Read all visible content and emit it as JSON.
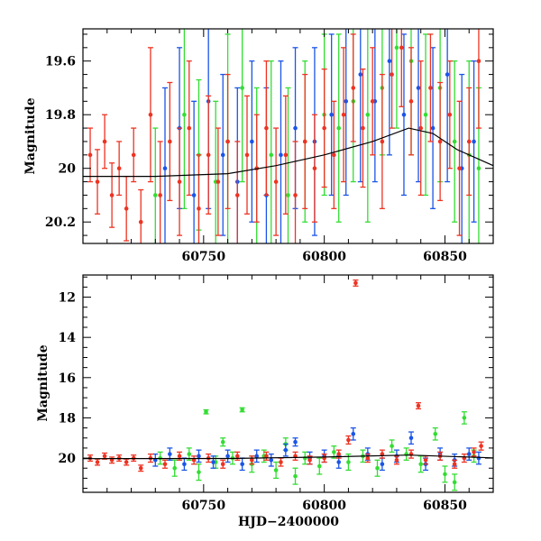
{
  "colors": {
    "green": "#33dd33",
    "blue": "#1a55e8",
    "red": "#ee3322",
    "model": "#000000"
  },
  "chart_data": [
    {
      "panel": "top",
      "type": "scatter",
      "title": "",
      "xlabel": "",
      "ylabel": "Magnitude",
      "xlim": [
        60700,
        60870
      ],
      "ylim": [
        20.28,
        19.48
      ],
      "y_inverted": true,
      "xticks": [
        "60750",
        "60800",
        "60850"
      ],
      "yticks": [
        "19.6",
        "19.8",
        "20",
        "20.2"
      ],
      "series": [
        {
          "color": "green",
          "points": [
            [
              60730,
              20.1,
              0.25
            ],
            [
              60742,
              19.8,
              0.35
            ],
            [
              60748,
              19.95,
              0.28
            ],
            [
              60755,
              20.05,
              0.3
            ],
            [
              60760,
              19.9,
              0.4
            ],
            [
              60766,
              19.7,
              0.35
            ],
            [
              60772,
              20.0,
              0.3
            ],
            [
              60778,
              19.95,
              0.35
            ],
            [
              60785,
              20.1,
              0.4
            ],
            [
              60792,
              19.9,
              0.3
            ],
            [
              60800,
              19.8,
              0.3
            ],
            [
              60806,
              19.85,
              0.35
            ],
            [
              60812,
              19.75,
              0.3
            ],
            [
              60818,
              19.8,
              0.4
            ],
            [
              60824,
              19.7,
              0.25
            ],
            [
              60830,
              19.55,
              0.3
            ],
            [
              60836,
              19.6,
              0.35
            ],
            [
              60842,
              19.8,
              0.3
            ],
            [
              60848,
              19.7,
              0.35
            ],
            [
              60854,
              19.9,
              0.3
            ],
            [
              60860,
              19.95,
              0.35
            ],
            [
              60864,
              20.0,
              0.3
            ]
          ]
        },
        {
          "color": "blue",
          "points": [
            [
              60734,
              20.0,
              0.3
            ],
            [
              60740,
              19.85,
              0.3
            ],
            [
              60746,
              20.1,
              0.35
            ],
            [
              60752,
              19.75,
              0.4
            ],
            [
              60758,
              19.95,
              0.3
            ],
            [
              60764,
              20.05,
              0.35
            ],
            [
              60770,
              19.9,
              0.3
            ],
            [
              60776,
              20.1,
              0.4
            ],
            [
              60782,
              19.95,
              0.35
            ],
            [
              60788,
              19.85,
              0.3
            ],
            [
              60796,
              19.9,
              0.35
            ],
            [
              60803,
              19.8,
              0.3
            ],
            [
              60809,
              19.75,
              0.35
            ],
            [
              60815,
              19.65,
              0.4
            ],
            [
              60821,
              19.75,
              0.3
            ],
            [
              60827,
              19.6,
              0.35
            ],
            [
              60833,
              19.8,
              0.3
            ],
            [
              60839,
              19.7,
              0.35
            ],
            [
              60845,
              19.85,
              0.3
            ],
            [
              60851,
              19.65,
              0.4
            ],
            [
              60857,
              20.0,
              0.35
            ],
            [
              60862,
              19.9,
              0.3
            ]
          ]
        },
        {
          "color": "red",
          "points": [
            [
              60703,
              19.95,
              0.1
            ],
            [
              60706,
              20.05,
              0.12
            ],
            [
              60709,
              19.9,
              0.1
            ],
            [
              60712,
              20.1,
              0.12
            ],
            [
              60715,
              20.0,
              0.1
            ],
            [
              60718,
              20.15,
              0.12
            ],
            [
              60721,
              19.95,
              0.1
            ],
            [
              60724,
              20.2,
              0.12
            ],
            [
              60728,
              19.8,
              0.25
            ],
            [
              60732,
              20.1,
              0.2
            ],
            [
              60736,
              19.9,
              0.22
            ],
            [
              60740,
              20.05,
              0.2
            ],
            [
              60744,
              19.85,
              0.25
            ],
            [
              60748,
              20.15,
              0.2
            ],
            [
              60752,
              19.95,
              0.22
            ],
            [
              60756,
              20.05,
              0.2
            ],
            [
              60760,
              19.9,
              0.25
            ],
            [
              60764,
              20.1,
              0.2
            ],
            [
              60768,
              19.95,
              0.22
            ],
            [
              60772,
              20.0,
              0.2
            ],
            [
              60776,
              19.85,
              0.25
            ],
            [
              60780,
              20.05,
              0.2
            ],
            [
              60784,
              19.95,
              0.22
            ],
            [
              60788,
              20.1,
              0.2
            ],
            [
              60792,
              19.9,
              0.25
            ],
            [
              60796,
              20.0,
              0.2
            ],
            [
              60800,
              19.85,
              0.22
            ],
            [
              60804,
              19.95,
              0.2
            ],
            [
              60808,
              19.8,
              0.25
            ],
            [
              60812,
              19.7,
              0.2
            ],
            [
              60816,
              19.85,
              0.22
            ],
            [
              60820,
              19.75,
              0.2
            ],
            [
              60824,
              19.9,
              0.25
            ],
            [
              60828,
              19.65,
              0.2
            ],
            [
              60832,
              19.55,
              0.22
            ],
            [
              60836,
              19.75,
              0.2
            ],
            [
              60840,
              19.85,
              0.25
            ],
            [
              60844,
              19.7,
              0.2
            ],
            [
              60848,
              19.9,
              0.22
            ],
            [
              60852,
              19.8,
              0.2
            ],
            [
              60856,
              20.0,
              0.25
            ],
            [
              60860,
              19.9,
              0.2
            ],
            [
              60864,
              19.6,
              0.25
            ]
          ]
        }
      ],
      "model_curve": [
        [
          60700,
          20.03
        ],
        [
          60730,
          20.03
        ],
        [
          60760,
          20.02
        ],
        [
          60780,
          19.99
        ],
        [
          60800,
          19.95
        ],
        [
          60820,
          19.9
        ],
        [
          60835,
          19.85
        ],
        [
          60845,
          19.87
        ],
        [
          60855,
          19.93
        ],
        [
          60870,
          19.99
        ]
      ]
    },
    {
      "panel": "bottom",
      "type": "scatter",
      "title": "",
      "xlabel": "HJD−2400000",
      "ylabel": "Magnitude",
      "xlim": [
        60700,
        60870
      ],
      "ylim": [
        21.7,
        10.9
      ],
      "y_inverted": true,
      "xticks": [
        "60750",
        "60800",
        "60850"
      ],
      "yticks": [
        "12",
        "14",
        "16",
        "18",
        "20"
      ],
      "series": [
        {
          "color": "green",
          "points": [
            [
              60732,
              20.0,
              0.3
            ],
            [
              60738,
              20.5,
              0.4
            ],
            [
              60744,
              19.8,
              0.3
            ],
            [
              60748,
              20.7,
              0.4
            ],
            [
              60751,
              17.7,
              0.1
            ],
            [
              60755,
              20.2,
              0.3
            ],
            [
              60758,
              19.2,
              0.2
            ],
            [
              60762,
              20.0,
              0.3
            ],
            [
              60766,
              17.6,
              0.1
            ],
            [
              60770,
              20.3,
              0.4
            ],
            [
              60775,
              19.9,
              0.3
            ],
            [
              60780,
              20.6,
              0.4
            ],
            [
              60784,
              19.3,
              0.3
            ],
            [
              60788,
              20.9,
              0.4
            ],
            [
              60792,
              20.0,
              0.3
            ],
            [
              60798,
              20.4,
              0.4
            ],
            [
              60804,
              19.7,
              0.3
            ],
            [
              60810,
              20.2,
              0.4
            ],
            [
              60816,
              19.9,
              0.3
            ],
            [
              60822,
              20.5,
              0.4
            ],
            [
              60828,
              19.4,
              0.3
            ],
            [
              60834,
              19.8,
              0.3
            ],
            [
              60840,
              20.3,
              0.4
            ],
            [
              60846,
              18.8,
              0.3
            ],
            [
              60850,
              20.8,
              0.4
            ],
            [
              60854,
              21.2,
              0.4
            ],
            [
              60858,
              18.0,
              0.3
            ],
            [
              60862,
              19.9,
              0.3
            ]
          ]
        },
        {
          "color": "blue",
          "points": [
            [
              60730,
              20.1,
              0.3
            ],
            [
              60736,
              19.8,
              0.3
            ],
            [
              60742,
              20.3,
              0.3
            ],
            [
              60748,
              19.9,
              0.3
            ],
            [
              60754,
              20.2,
              0.3
            ],
            [
              60760,
              19.9,
              0.3
            ],
            [
              60766,
              20.3,
              0.3
            ],
            [
              60772,
              19.9,
              0.3
            ],
            [
              60778,
              20.1,
              0.3
            ],
            [
              60784,
              19.6,
              0.3
            ],
            [
              60788,
              19.2,
              0.2
            ],
            [
              60794,
              20.0,
              0.3
            ],
            [
              60800,
              19.9,
              0.3
            ],
            [
              60806,
              20.2,
              0.3
            ],
            [
              60812,
              18.8,
              0.3
            ],
            [
              60818,
              19.8,
              0.3
            ],
            [
              60824,
              20.3,
              0.3
            ],
            [
              60830,
              19.9,
              0.3
            ],
            [
              60836,
              19.0,
              0.3
            ],
            [
              60842,
              20.3,
              0.3
            ],
            [
              60848,
              19.8,
              0.3
            ],
            [
              60854,
              20.1,
              0.3
            ],
            [
              60860,
              19.8,
              0.3
            ],
            [
              60864,
              20.0,
              0.3
            ]
          ]
        },
        {
          "color": "red",
          "points": [
            [
              60703,
              20.0,
              0.15
            ],
            [
              60706,
              20.2,
              0.15
            ],
            [
              60709,
              19.9,
              0.15
            ],
            [
              60712,
              20.1,
              0.15
            ],
            [
              60715,
              20.0,
              0.15
            ],
            [
              60718,
              20.2,
              0.15
            ],
            [
              60721,
              20.0,
              0.15
            ],
            [
              60724,
              20.5,
              0.15
            ],
            [
              60728,
              20.0,
              0.2
            ],
            [
              60734,
              20.3,
              0.2
            ],
            [
              60740,
              19.9,
              0.2
            ],
            [
              60746,
              20.1,
              0.2
            ],
            [
              60752,
              20.0,
              0.2
            ],
            [
              60758,
              20.3,
              0.2
            ],
            [
              60764,
              19.9,
              0.2
            ],
            [
              60770,
              20.1,
              0.2
            ],
            [
              60776,
              19.9,
              0.2
            ],
            [
              60782,
              20.2,
              0.2
            ],
            [
              60788,
              19.9,
              0.2
            ],
            [
              60794,
              20.1,
              0.2
            ],
            [
              60800,
              20.0,
              0.2
            ],
            [
              60806,
              19.8,
              0.2
            ],
            [
              60810,
              19.1,
              0.2
            ],
            [
              60813,
              11.3,
              0.15
            ],
            [
              60818,
              20.0,
              0.2
            ],
            [
              60824,
              19.8,
              0.2
            ],
            [
              60830,
              20.1,
              0.2
            ],
            [
              60836,
              19.8,
              0.2
            ],
            [
              60839,
              17.4,
              0.15
            ],
            [
              60842,
              20.1,
              0.2
            ],
            [
              60848,
              19.9,
              0.2
            ],
            [
              60854,
              20.3,
              0.2
            ],
            [
              60858,
              20.0,
              0.2
            ],
            [
              60862,
              19.7,
              0.2
            ],
            [
              60865,
              19.4,
              0.2
            ]
          ]
        }
      ],
      "model_curve": [
        [
          60700,
          20.03
        ],
        [
          60760,
          20.02
        ],
        [
          60800,
          19.95
        ],
        [
          60835,
          19.85
        ],
        [
          60870,
          19.99
        ]
      ]
    }
  ]
}
